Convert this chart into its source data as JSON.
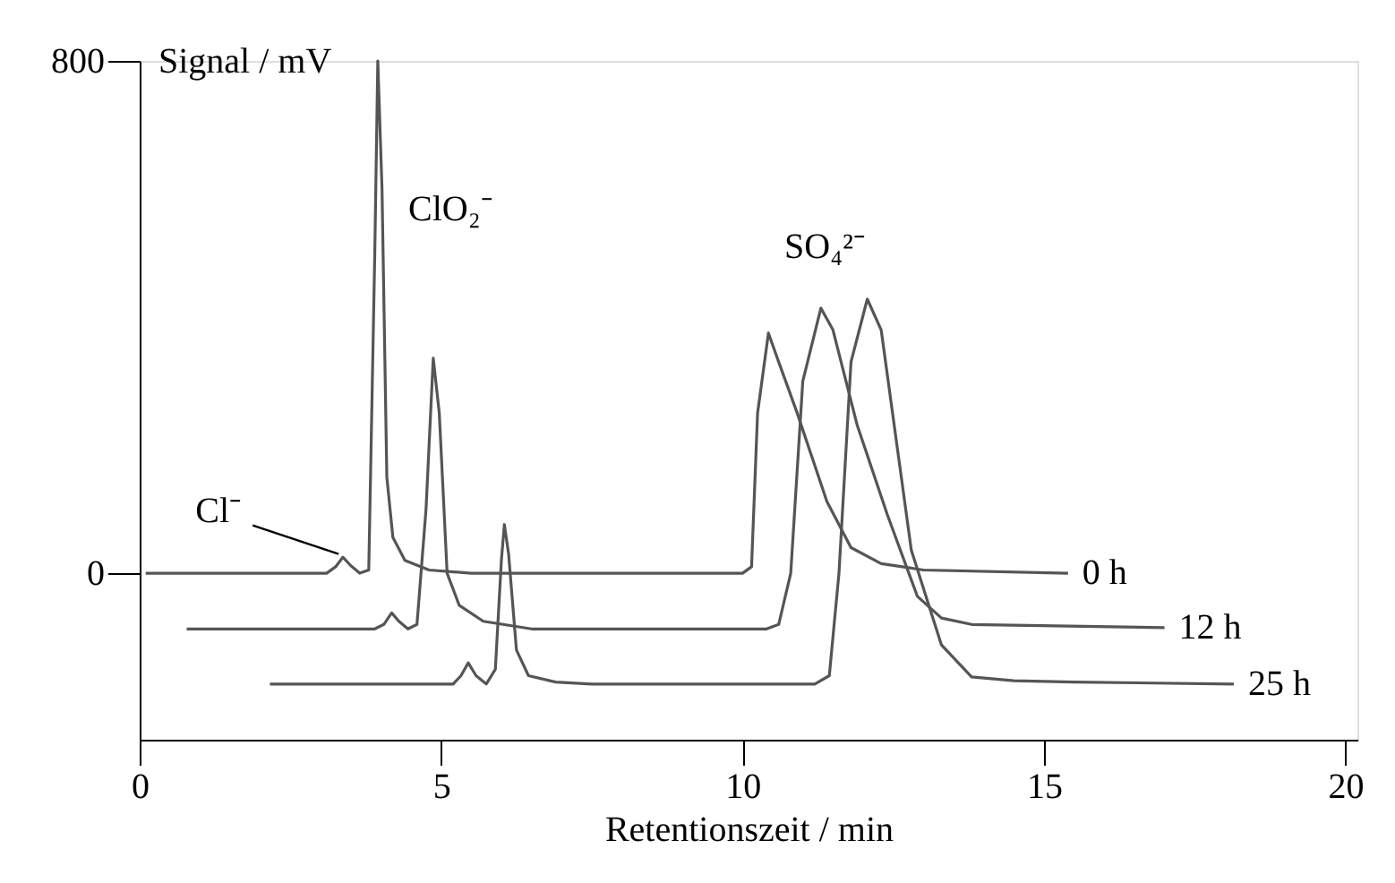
{
  "chart_data": {
    "type": "line",
    "xlabel": "Retentionszeit / min",
    "ylabel": "Signal / mV",
    "xlim": [
      0,
      20.2
    ],
    "xticks": [
      0,
      5,
      10,
      15,
      20
    ],
    "ylim": [
      -260,
      800
    ],
    "yticks": [
      0,
      800
    ],
    "grid": false,
    "legend": false,
    "marker": "none",
    "line_style": "solid",
    "series": [
      {
        "name": "0 h",
        "color": "#555555",
        "x": [
          0.1,
          3.1,
          3.25,
          3.37,
          3.5,
          3.65,
          3.8,
          3.9,
          3.95,
          4.02,
          4.1,
          4.2,
          4.4,
          4.8,
          5.5,
          10.0,
          10.15,
          10.25,
          10.43,
          10.6,
          10.9,
          11.4,
          11.8,
          12.3,
          13.0,
          15.4
        ],
        "values": [
          0,
          0,
          10,
          25,
          12,
          0,
          5,
          500,
          800,
          600,
          150,
          56,
          20,
          5,
          0,
          0,
          10,
          250,
          375,
          330,
          252,
          112,
          40,
          15,
          5,
          0
        ]
      },
      {
        "name": "12 h",
        "color": "#555555",
        "x": [
          0.78,
          3.9,
          4.05,
          4.18,
          4.3,
          4.45,
          4.6,
          4.75,
          4.87,
          4.97,
          5.1,
          5.3,
          5.7,
          6.5,
          10.4,
          10.6,
          10.8,
          11.0,
          11.3,
          11.5,
          11.9,
          12.4,
          12.9,
          13.3,
          13.8,
          17.0
        ],
        "values": [
          -87,
          -87,
          -80,
          -62,
          -75,
          -87,
          -80,
          100,
          336,
          250,
          0,
          -50,
          -75,
          -87,
          -87,
          -80,
          0,
          300,
          414,
          380,
          232,
          92,
          -36,
          -70,
          -80,
          -85
        ]
      },
      {
        "name": "25 h",
        "color": "#555555",
        "x": [
          2.16,
          5.2,
          5.33,
          5.45,
          5.58,
          5.75,
          5.9,
          6.0,
          6.05,
          6.12,
          6.25,
          6.45,
          6.9,
          7.5,
          11.2,
          11.44,
          11.6,
          11.8,
          12.07,
          12.3,
          12.8,
          13.3,
          13.8,
          14.5,
          15.5,
          18.15
        ],
        "values": [
          -173,
          -173,
          -160,
          -140,
          -160,
          -173,
          -150,
          20,
          76,
          30,
          -120,
          -160,
          -170,
          -173,
          -173,
          -160,
          0,
          330,
          428,
          380,
          36,
          -112,
          -162,
          -168,
          -170,
          -173
        ]
      }
    ],
    "annotations": [
      {
        "text": "Cl⁻",
        "x": 3.3,
        "y": 30
      },
      "ClO₂⁻",
      "SO₄²⁻"
    ]
  }
}
